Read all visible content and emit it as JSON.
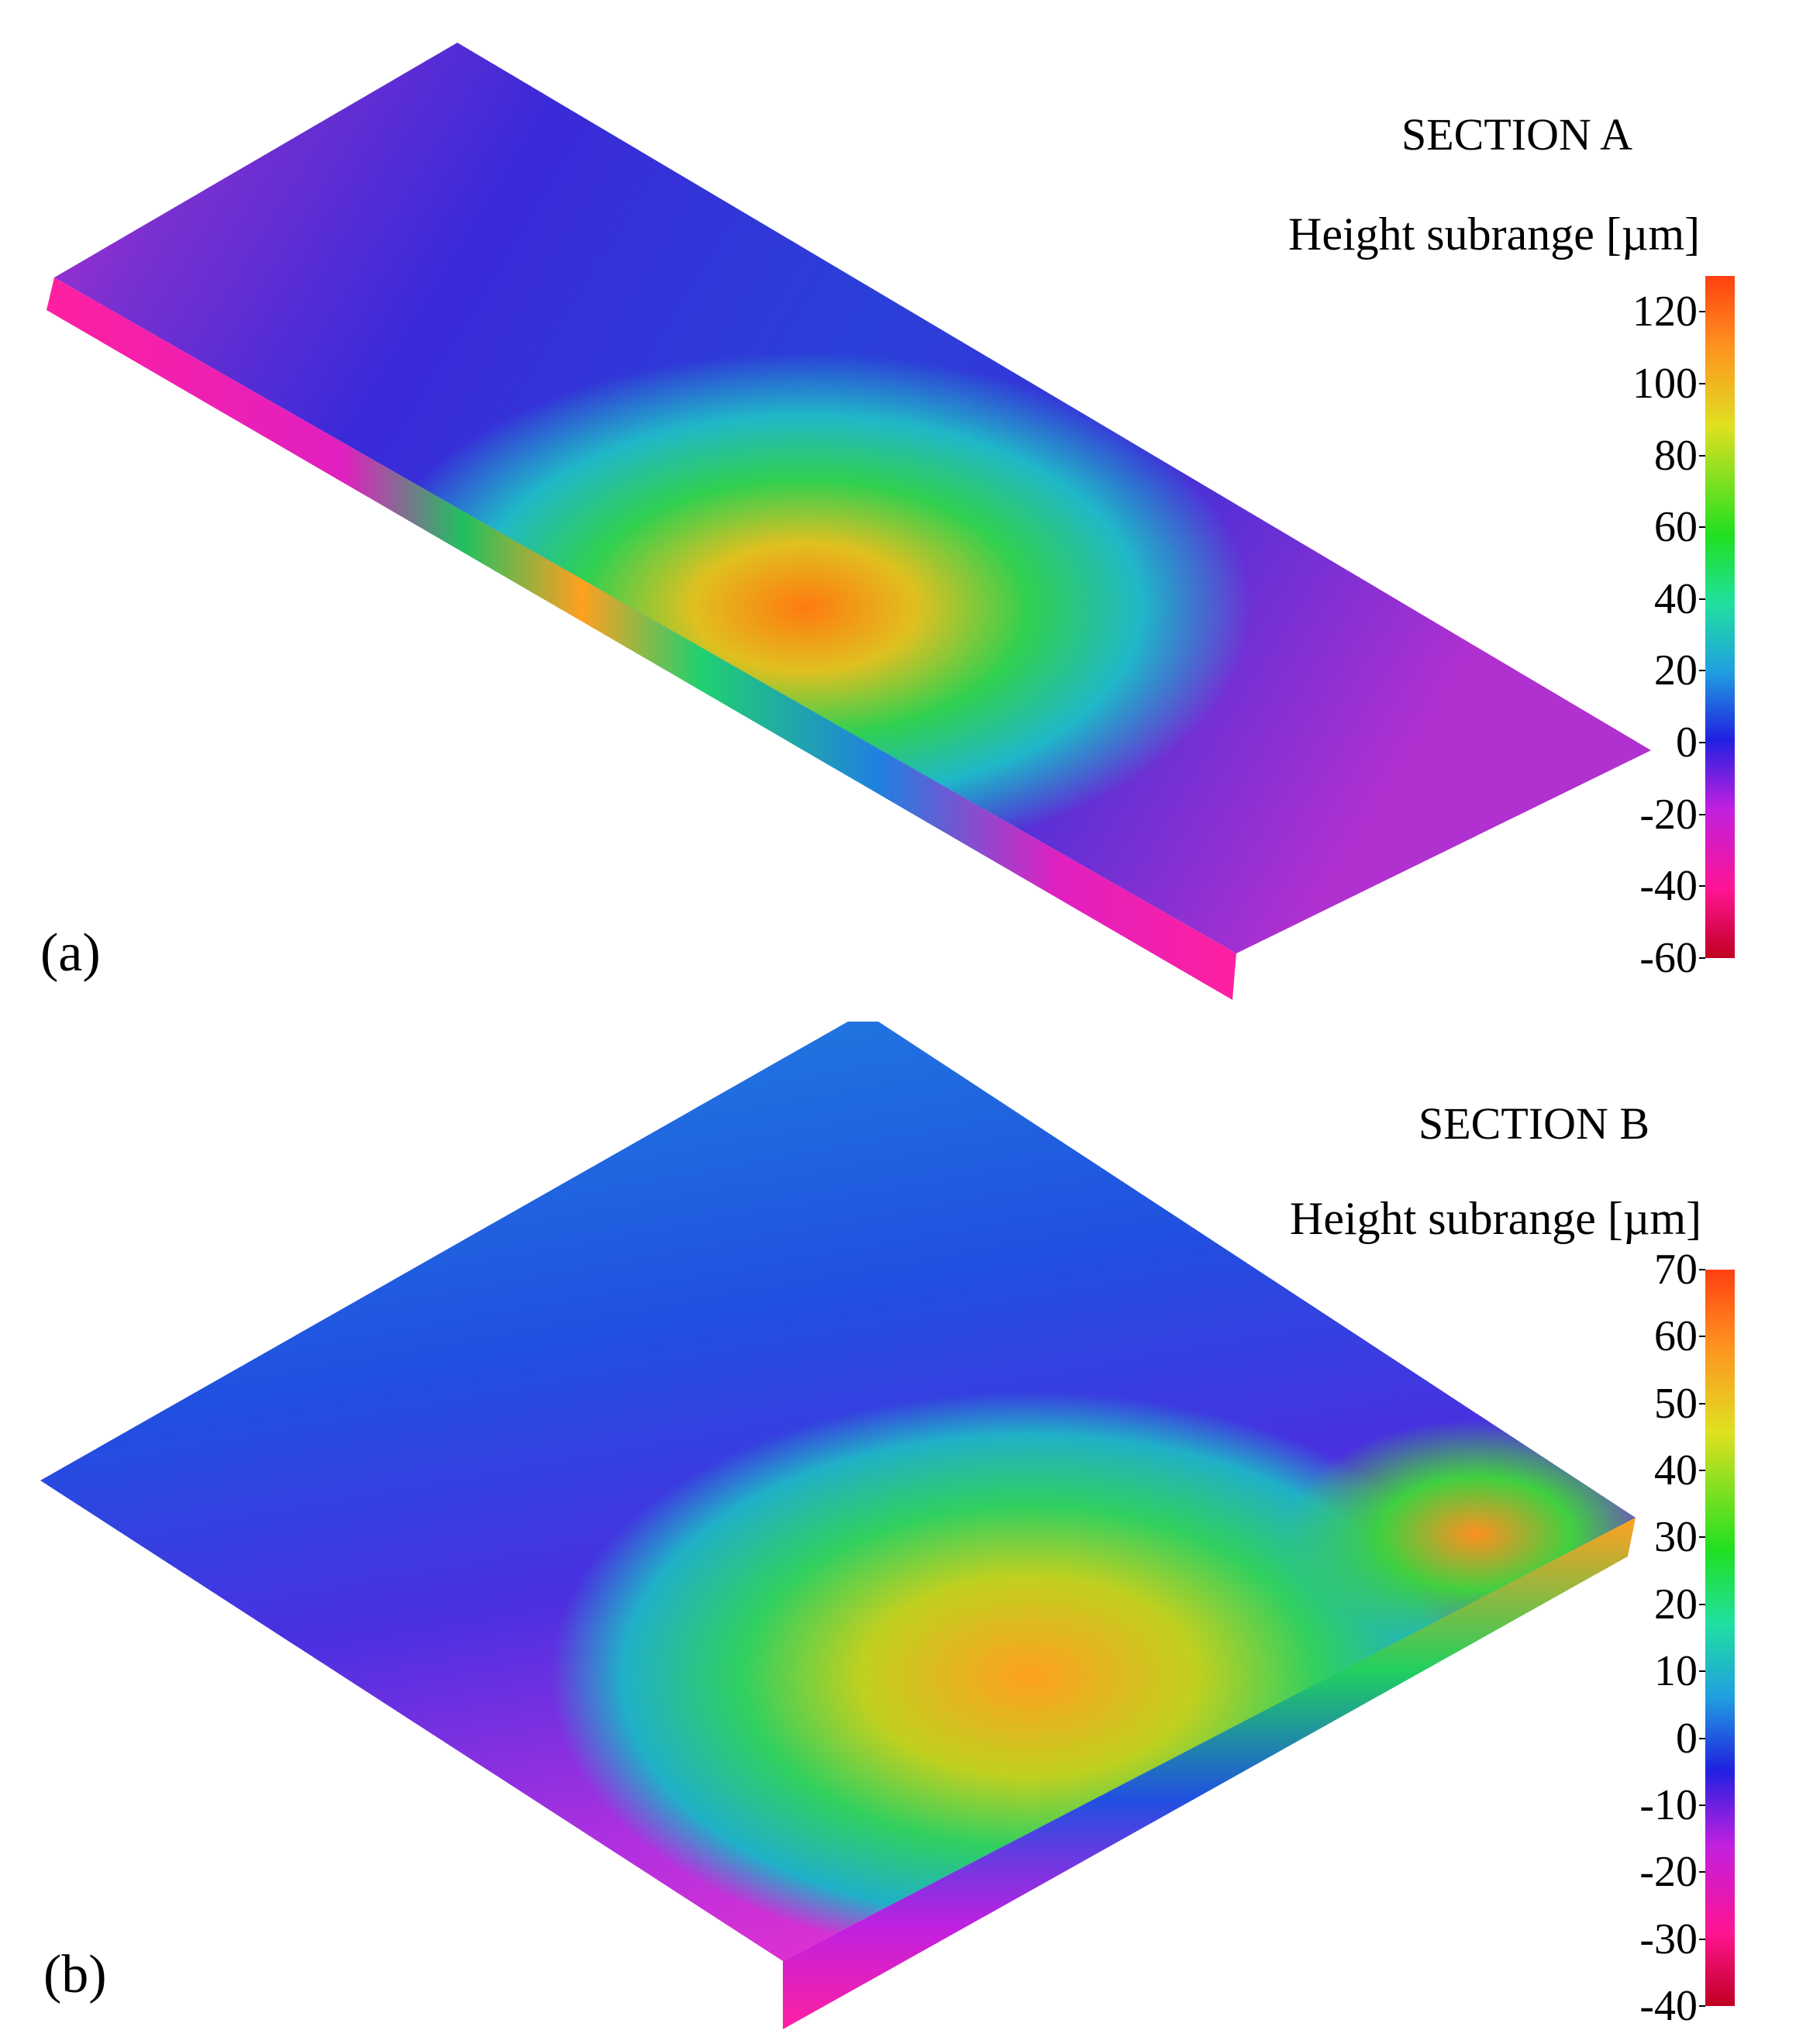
{
  "panels": [
    {
      "label": "(a)",
      "section_title": "SECTION A",
      "subrange_title": "Height subrange [µm]",
      "colorbar": {
        "min": -60,
        "max": 130,
        "ticks": [
          "120",
          "100",
          "80",
          "60",
          "40",
          "20",
          "0",
          "-20",
          "-40",
          "-60"
        ],
        "tick_values": [
          120,
          100,
          80,
          60,
          40,
          20,
          0,
          -20,
          -40,
          -60
        ]
      }
    },
    {
      "label": "(b)",
      "section_title": "SECTION B",
      "subrange_title": "Height subrange [µm]",
      "colorbar": {
        "min": -40,
        "max": 70,
        "ticks": [
          "70",
          "60",
          "50",
          "40",
          "30",
          "20",
          "10",
          "0",
          "-10",
          "-20",
          "-30",
          "-40"
        ],
        "tick_values": [
          70,
          60,
          50,
          40,
          30,
          20,
          10,
          0,
          -10,
          -20,
          -30,
          -40
        ]
      }
    }
  ],
  "colormap": [
    "#d0102a",
    "#ff1493",
    "#e020e0",
    "#8a2be2",
    "#2020e0",
    "#1e78e0",
    "#20d0e0",
    "#20e060",
    "#60e020",
    "#e0e020",
    "#ff9020",
    "#ff4010"
  ]
}
